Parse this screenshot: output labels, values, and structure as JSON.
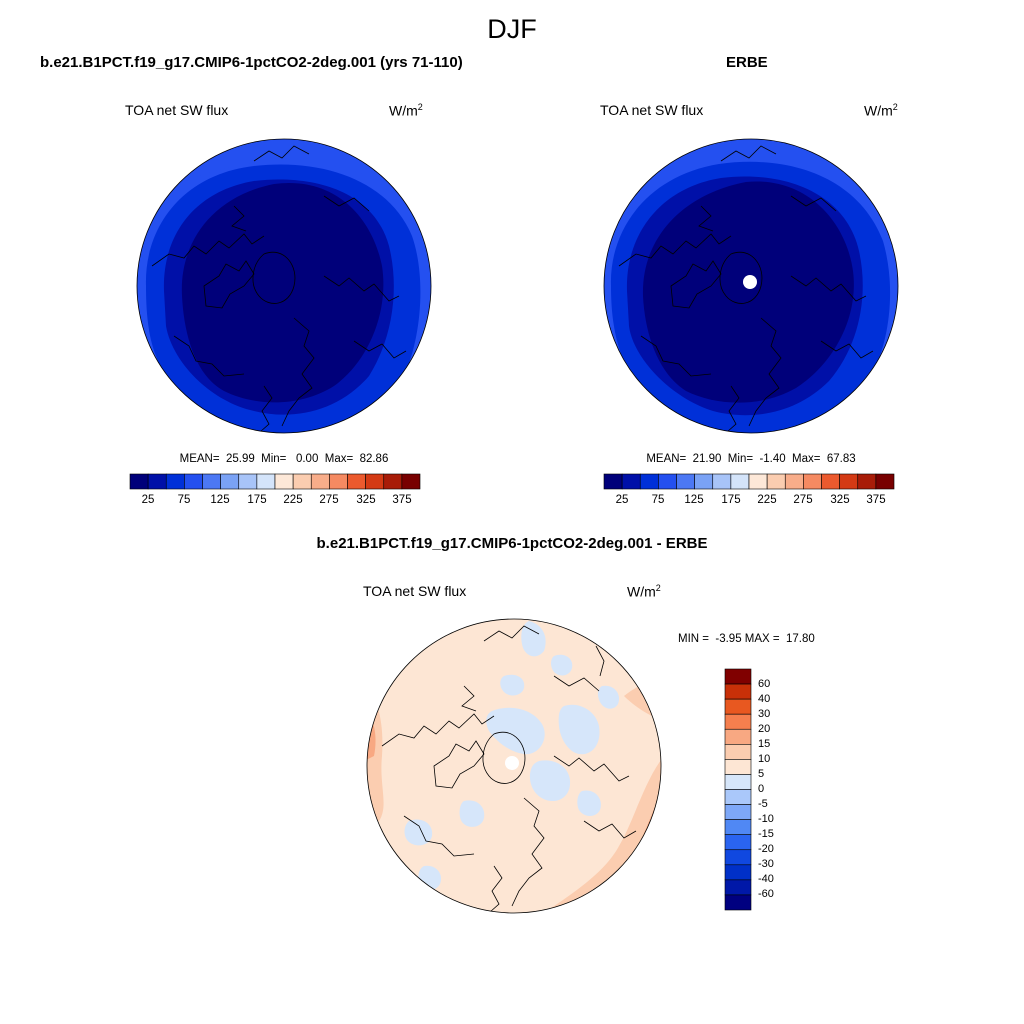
{
  "title": "DJF",
  "colors": {
    "ramp": [
      "#00007a",
      "#0010a8",
      "#0030d8",
      "#2450f0",
      "#4c78f4",
      "#7aa2f5",
      "#a8c4f8",
      "#d4e4fa",
      "#fde8d8",
      "#fbcdb0",
      "#f8ad8a",
      "#f58a62",
      "#ec5a2e",
      "#d43a14",
      "#a81c08",
      "#780000"
    ],
    "diff_ramp": [
      "#000080",
      "#0018a8",
      "#0030c8",
      "#1048e0",
      "#2a64f0",
      "#5088f4",
      "#7ea8f8",
      "#aac8fa",
      "#d6e6fa",
      "#fde6d4",
      "#fbcdb0",
      "#f8a882",
      "#f57f4e",
      "#e85820",
      "#c83008",
      "#800000"
    ],
    "coast": "#000000",
    "missing": "#ffffff"
  },
  "panels": [
    {
      "case": "b.e21.B1PCT.f19_g17.CMIP6-1pctCO2-2deg.001 (yrs 71-110)",
      "variable": "TOA net SW flux",
      "units": "W/m",
      "units_exp": "2",
      "stats": "MEAN=  25.99  Min=   0.00  Max=  82.86",
      "colorbar_ticks": [
        "25",
        "75",
        "125",
        "175",
        "225",
        "275",
        "325",
        "375"
      ]
    },
    {
      "case": "ERBE",
      "variable": "TOA net SW flux",
      "units": "W/m",
      "units_exp": "2",
      "stats": "MEAN=  21.90  Min=  -1.40  Max=  67.83",
      "colorbar_ticks": [
        "25",
        "75",
        "125",
        "175",
        "225",
        "275",
        "325",
        "375"
      ]
    },
    {
      "case": "b.e21.B1PCT.f19_g17.CMIP6-1pctCO2-2deg.001 - ERBE",
      "variable": "TOA net SW flux",
      "units": "W/m",
      "units_exp": "2",
      "stats": "MIN =  -3.95 MAX =  17.80",
      "colorbar_ticks": [
        "60",
        "40",
        "30",
        "20",
        "15",
        "10",
        "5",
        "0",
        "-5",
        "-10",
        "-15",
        "-20",
        "-30",
        "-40",
        "-60"
      ]
    }
  ]
}
